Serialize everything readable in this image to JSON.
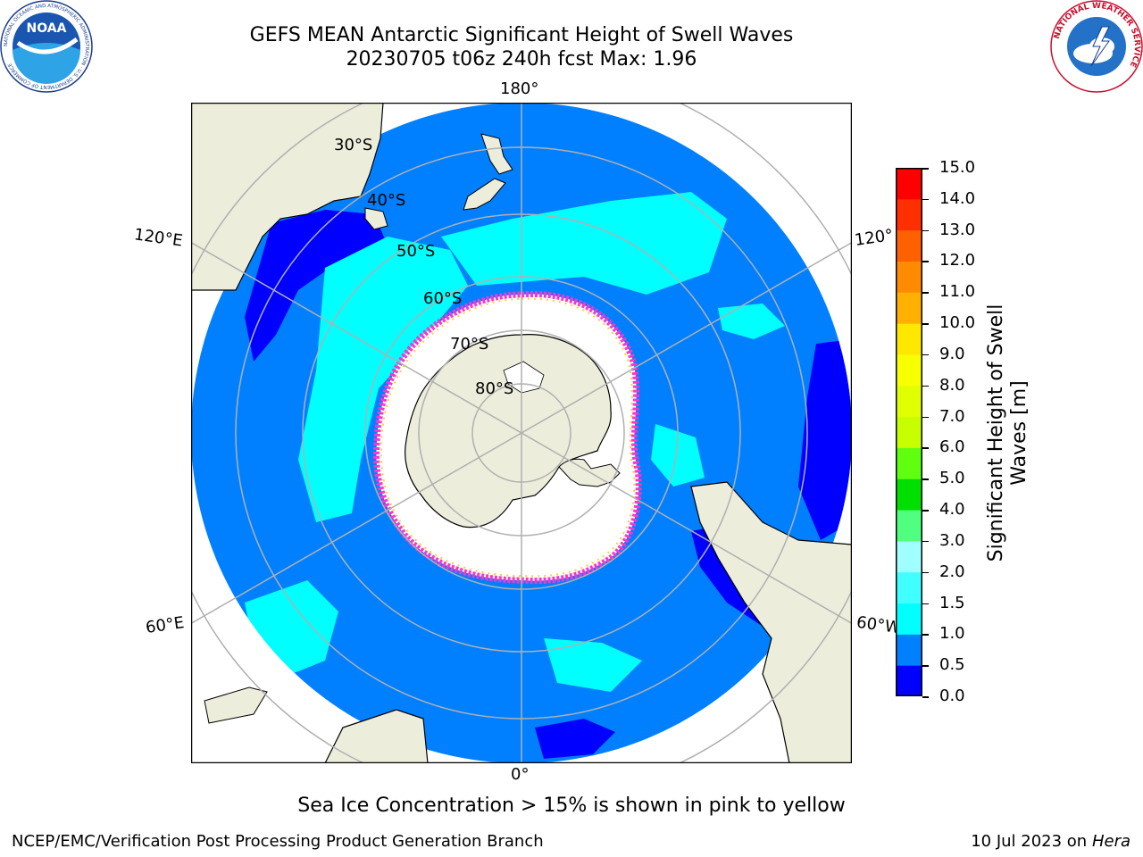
{
  "title": {
    "line1": "GEFS MEAN Antarctic Significant Height of Swell Waves",
    "line2": "20230705 t06z 240h fcst   Max: 1.96"
  },
  "map": {
    "meridian_labels": {
      "top": "180°",
      "bottom": "0°",
      "upper_left": "120°E",
      "upper_right": "120°",
      "lower_left": "60°E",
      "lower_right": "60°W"
    },
    "latitude_labels": [
      "30°S",
      "40°S",
      "50°S",
      "60°S",
      "70°S",
      "80°S"
    ],
    "colors": {
      "land": "#ededdc",
      "ice": "#ffffff",
      "ocean_0_5_1_0": "#0080ff",
      "ocean_1_0_1_5": "#00ffff",
      "ocean_0_0_0_5": "#0000ff",
      "gridline": "#b0b0b0",
      "ice_edge": "#ff33cc"
    }
  },
  "colorbar": {
    "label": "Significant Height of Swell Waves [m]",
    "label_line1": "Significant Height of Swell",
    "label_line2": "Waves [m]",
    "ticks": [
      "15.0",
      "14.0",
      "13.0",
      "12.0",
      "11.0",
      "10.0",
      "9.0",
      "8.0",
      "7.0",
      "6.0",
      "5.0",
      "4.0",
      "3.0",
      "2.0",
      "1.5",
      "1.0",
      "0.5",
      "0.0"
    ],
    "bins": [
      {
        "from": 0.0,
        "to": 0.5,
        "color": "#0000ff"
      },
      {
        "from": 0.5,
        "to": 1.0,
        "color": "#0080ff"
      },
      {
        "from": 1.0,
        "to": 1.5,
        "color": "#00ffff"
      },
      {
        "from": 1.5,
        "to": 2.0,
        "color": "#40ffff"
      },
      {
        "from": 2.0,
        "to": 3.0,
        "color": "#a0ffff"
      },
      {
        "from": 3.0,
        "to": 4.0,
        "color": "#50ff80"
      },
      {
        "from": 4.0,
        "to": 5.0,
        "color": "#00e000"
      },
      {
        "from": 5.0,
        "to": 6.0,
        "color": "#60ff10"
      },
      {
        "from": 6.0,
        "to": 7.0,
        "color": "#c8ff00"
      },
      {
        "from": 7.0,
        "to": 8.0,
        "color": "#e0ff00"
      },
      {
        "from": 8.0,
        "to": 9.0,
        "color": "#f8ff00"
      },
      {
        "from": 9.0,
        "to": 10.0,
        "color": "#ffe800"
      },
      {
        "from": 10.0,
        "to": 11.0,
        "color": "#ffb000"
      },
      {
        "from": 11.0,
        "to": 12.0,
        "color": "#ff8c00"
      },
      {
        "from": 12.0,
        "to": 13.0,
        "color": "#ff6000"
      },
      {
        "from": 13.0,
        "to": 14.0,
        "color": "#ff3000"
      },
      {
        "from": 14.0,
        "to": 15.0,
        "color": "#ff0000"
      }
    ]
  },
  "footnote": "Sea Ice Concentration > 15% is shown in pink to yellow",
  "credit": "NCEP/EMC/Verification Post Processing Product Generation Branch",
  "stamp": {
    "date": "10 Jul 2023 on ",
    "machine": "Hera"
  },
  "logos": {
    "noaa_text": "NOAA",
    "noaa_ring": "NATIONAL OCEANIC AND ATMOSPHERIC ADMINISTRATION · U.S. DEPARTMENT OF COMMERCE",
    "nws_ring": "NATIONAL WEATHER SERVICE"
  }
}
